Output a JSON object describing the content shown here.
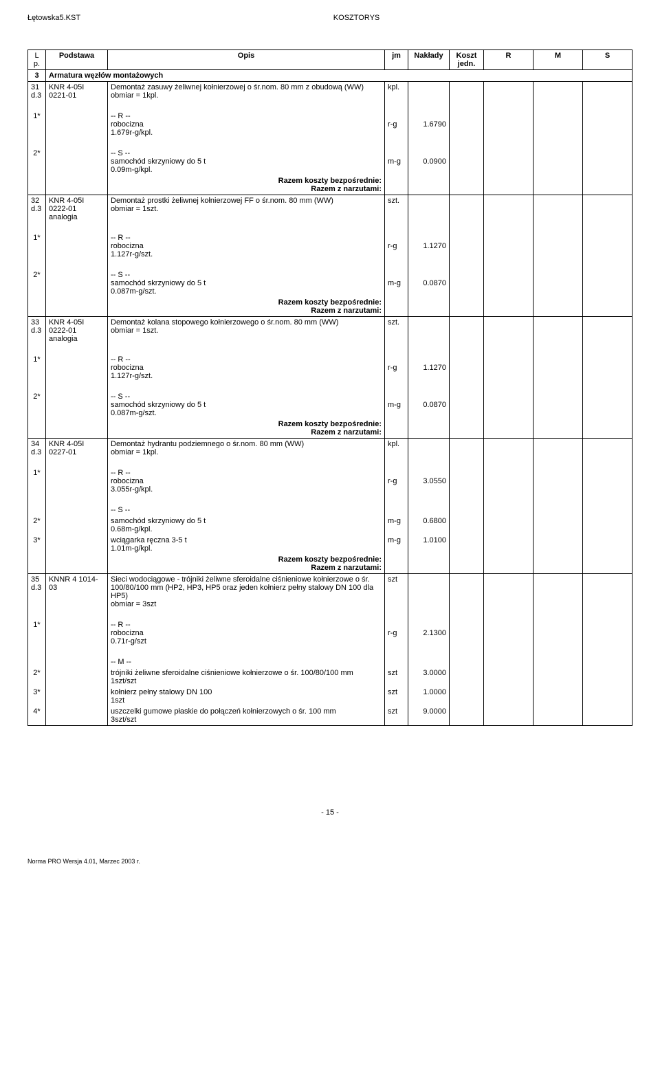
{
  "header": {
    "left": "Łętowska5.KST",
    "center": "KOSZTORYS"
  },
  "columns": {
    "lp": "L p.",
    "podstawa": "Podstawa",
    "opis": "Opis",
    "jm": "jm",
    "naklady": "Nakłady",
    "koszt": "Koszt jedn.",
    "r": "R",
    "m": "M",
    "s": "S"
  },
  "section": {
    "num": "3",
    "title": "Armatura węzłów montażowych"
  },
  "r31": {
    "lp": "31 d.3",
    "podstawa": "KNR 4-05I 0221-01",
    "opis1": "Demontaż zasuwy żeliwnej kołnierzowej o śr.nom. 80 mm z obudową (WW)",
    "opis2": "obmiar = 1kpl.",
    "jm": "kpl.",
    "rlabel": "-- R --",
    "rdesc": "robocizna",
    "rrate": "1.679r-g/kpl.",
    "rjm": "r-g",
    "rval": "1.6790",
    "slabel": "-- S --",
    "sdesc": "samochód skrzyniowy do 5 t",
    "srate": "0.09m-g/kpl.",
    "sjm": "m-g",
    "sval": "0.0900"
  },
  "r32": {
    "lp": "32 d.3",
    "podstawa": "KNR 4-05I 0222-01 analogia",
    "opis1": "Demontaż prostki żeliwnej kołnierzowej FF o śr.nom. 80 mm (WW)",
    "opis2": "obmiar = 1szt.",
    "jm": "szt.",
    "rlabel": "-- R --",
    "rdesc": "robocizna",
    "rrate": "1.127r-g/szt.",
    "rjm": "r-g",
    "rval": "1.1270",
    "slabel": "-- S --",
    "sdesc": "samochód skrzyniowy do 5 t",
    "srate": "0.087m-g/szt.",
    "sjm": "m-g",
    "sval": "0.0870"
  },
  "r33": {
    "lp": "33 d.3",
    "podstawa": "KNR 4-05I 0222-01 analogia",
    "opis1": "Demontaż kolana stopowego kołnierzowego o śr.nom. 80 mm (WW)",
    "opis2": "obmiar = 1szt.",
    "jm": "szt.",
    "rlabel": "-- R --",
    "rdesc": "robocizna",
    "rrate": "1.127r-g/szt.",
    "rjm": "r-g",
    "rval": "1.1270",
    "slabel": "-- S --",
    "sdesc": "samochód skrzyniowy do 5 t",
    "srate": "0.087m-g/szt.",
    "sjm": "m-g",
    "sval": "0.0870"
  },
  "r34": {
    "lp": "34 d.3",
    "podstawa": "KNR 4-05I 0227-01",
    "opis1": "Demontaż hydrantu podziemnego o śr.nom. 80 mm (WW)",
    "opis2": "obmiar = 1kpl.",
    "jm": "kpl.",
    "rlabel": "-- R --",
    "rdesc": "robocizna",
    "rrate": "3.055r-g/kpl.",
    "rjm": "r-g",
    "rval": "3.0550",
    "slabel": "-- S --",
    "sdesc1": "samochód skrzyniowy do 5 t",
    "srate1": "0.68m-g/kpl.",
    "sjm1": "m-g",
    "sval1": "0.6800",
    "sdesc2": "wciągarka ręczna 3-5 t",
    "srate2": "1.01m-g/kpl.",
    "sjm2": "m-g",
    "sval2": "1.0100"
  },
  "r35": {
    "lp": "35 d.3",
    "podstawa": "KNNR 4 1014-03",
    "opis1": "Sieci wodociągowe - trójniki żeliwne sferoidalne ciśnieniowe kołnierzowe o śr. 100/80/100 mm (HP2, HP3, HP5 oraz jeden kołnierz pełny stalowy DN 100 dla HP5)",
    "opis2": "obmiar = 3szt",
    "jm": "szt",
    "rlabel": "-- R --",
    "rdesc": "robocizna",
    "rrate": "0.71r-g/szt",
    "rjm": "r-g",
    "rval": "2.1300",
    "mlabel": "-- M --",
    "mdesc1": "trójniki żeliwne sferoidalne ciśnieniowe kołnierzowe o śr. 100/80/100 mm",
    "mrate1": "1szt/szt",
    "mjm1": "szt",
    "mval1": "3.0000",
    "mdesc2": "kołnierz pełny stalowy DN 100",
    "mrate2": "1szt",
    "mjm2": "szt",
    "mval2": "1.0000",
    "mdesc3": "uszczelki gumowe płaskie do połączeń kołnierzowych o śr. 100 mm",
    "mrate3": "3szt/szt",
    "mjm3": "szt",
    "mval3": "9.0000"
  },
  "sum": {
    "bezp": "Razem koszty bezpośrednie:",
    "narz": "Razem z narzutami:"
  },
  "marks": {
    "one": "1*",
    "two": "2*",
    "three": "3*",
    "four": "4*"
  },
  "footer": {
    "page": "- 15 -",
    "software": "Norma PRO Wersja 4.01, Marzec 2003 r."
  }
}
